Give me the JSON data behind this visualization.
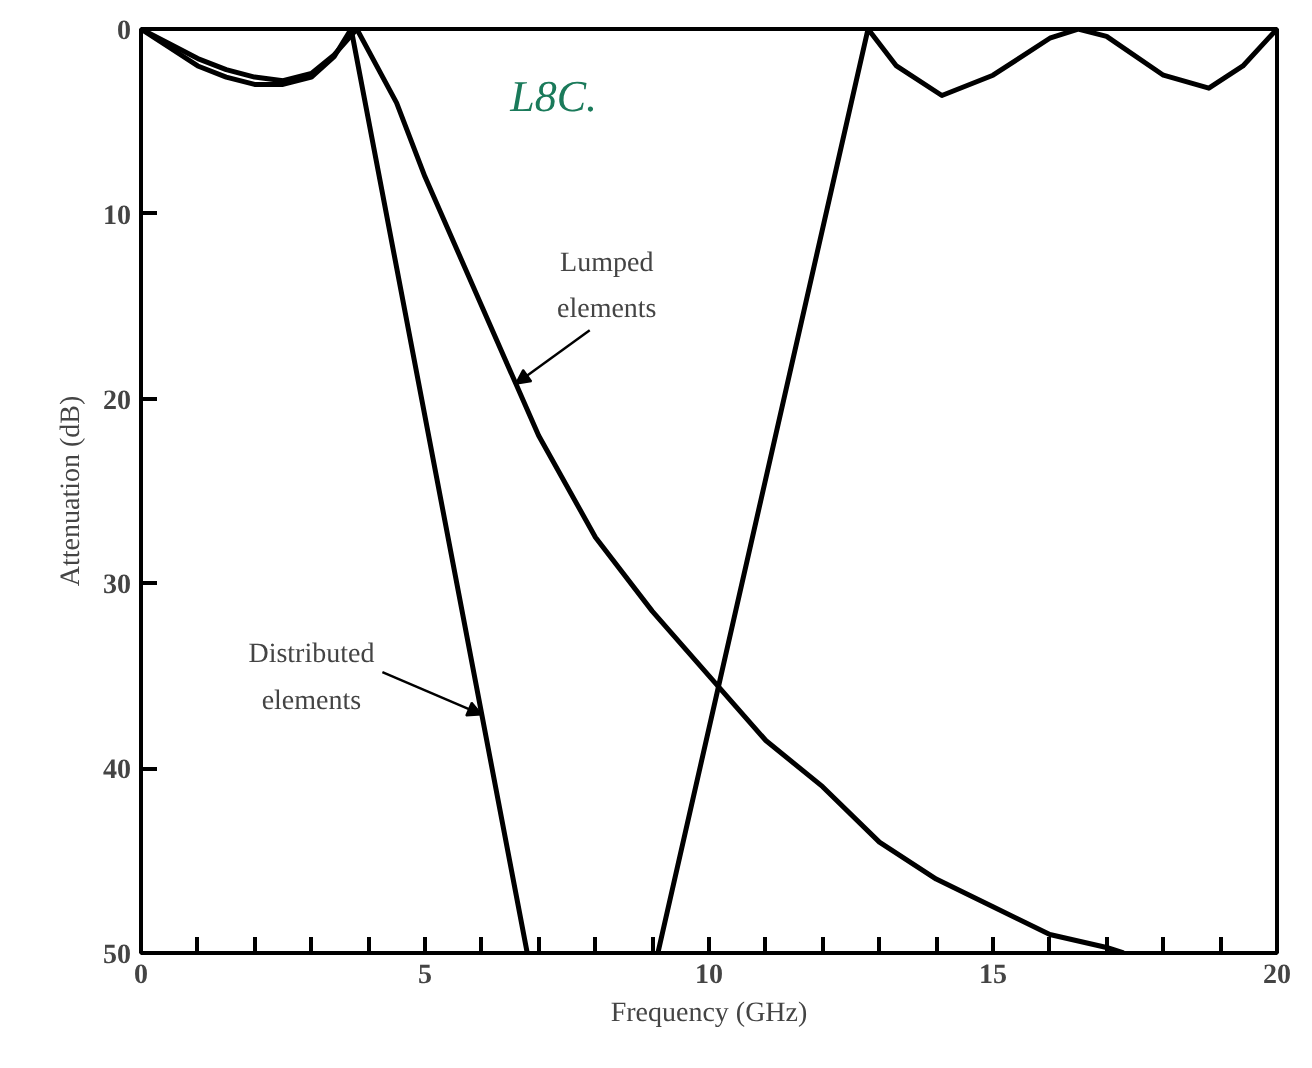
{
  "chart_data": {
    "type": "line",
    "xlabel": "Frequency (GHz)",
    "ylabel": "Attenuation (dB)",
    "xlim": [
      0,
      20
    ],
    "ylim": [
      50,
      0
    ],
    "xticks": [
      0,
      {
        "value": 1,
        "label": null
      },
      {
        "value": 2,
        "label": null
      },
      {
        "value": 3,
        "label": null
      },
      {
        "value": 4,
        "label": null
      },
      5,
      {
        "value": 6,
        "label": null
      },
      {
        "value": 7,
        "label": null
      },
      {
        "value": 8,
        "label": null
      },
      {
        "value": 9,
        "label": null
      },
      10,
      {
        "value": 11,
        "label": null
      },
      {
        "value": 12,
        "label": null
      },
      {
        "value": 13,
        "label": null
      },
      {
        "value": 14,
        "label": null
      },
      15,
      {
        "value": 16,
        "label": null
      },
      {
        "value": 17,
        "label": null
      },
      {
        "value": 18,
        "label": null
      },
      {
        "value": 19,
        "label": null
      },
      20
    ],
    "yticks": [
      0,
      10,
      20,
      30,
      40,
      50
    ],
    "grid": false,
    "marker": "none",
    "line_style": "solid",
    "series": [
      {
        "color": "#000000",
        "x": [
          0,
          0.5,
          1,
          1.5,
          2,
          2.5,
          3,
          3.4,
          3.8,
          4.5,
          5,
          6,
          6.6,
          7,
          8,
          9,
          10,
          11,
          12,
          13,
          14,
          15,
          16,
          17,
          17.3
        ],
        "values": [
          0,
          0.8,
          1.6,
          2.2,
          2.6,
          2.8,
          2.4,
          1.4,
          0,
          4,
          8,
          15,
          19.2,
          22,
          27.5,
          31.5,
          35,
          38.5,
          41,
          44,
          46,
          47.5,
          49,
          49.7,
          50
        ]
      },
      {
        "color": "#000000",
        "x": [
          0,
          0.5,
          1,
          1.5,
          2,
          2.5,
          3,
          3.4,
          3.7,
          6.8,
          8,
          9.1,
          12.8,
          13.3,
          14.1,
          15,
          16,
          16.5,
          17,
          18,
          18.8,
          19.4,
          20
        ],
        "values": [
          0,
          1,
          2,
          2.6,
          3,
          3,
          2.6,
          1.5,
          0,
          50,
          null,
          50,
          0,
          2,
          3.6,
          2.5,
          0.5,
          0,
          0.4,
          2.5,
          3.2,
          2,
          0
        ]
      }
    ],
    "annotations": [
      {
        "text": "Lumped elements",
        "x": 6.6,
        "y": 19.2
      },
      {
        "text": "Distributed elements",
        "x": 6.0,
        "y": 37.1
      },
      "L8C."
    ]
  }
}
